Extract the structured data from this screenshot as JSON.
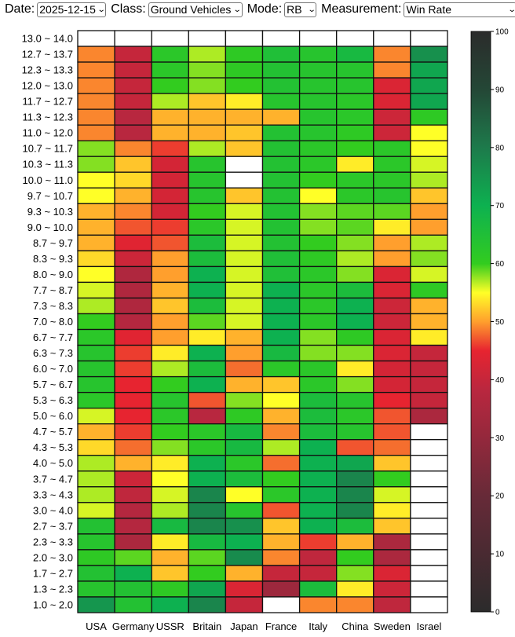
{
  "filters": {
    "date_label": "Date:",
    "date_value": "2025-12-15",
    "class_label": "Class:",
    "class_value": "Ground Vehicles",
    "mode_label": "Mode:",
    "mode_value": "RB",
    "measurement_label": "Measurement:",
    "measurement_value": "Win Rate"
  },
  "chart_data": {
    "type": "heatmap",
    "title": "",
    "xlabel": "",
    "ylabel": "",
    "x_categories": [
      "USA",
      "Germany",
      "USSR",
      "Britain",
      "Japan",
      "France",
      "Italy",
      "China",
      "Sweden",
      "Israel"
    ],
    "y_categories": [
      "13.0 ~ 14.0",
      "12.7 ~ 13.7",
      "12.3 ~ 13.3",
      "12.0 ~ 13.0",
      "11.7 ~ 12.7",
      "11.3 ~ 12.3",
      "11.0 ~ 12.0",
      "10.7 ~ 11.7",
      "10.3 ~ 11.3",
      "10.0 ~ 11.0",
      "9.7 ~ 10.7",
      "9.3 ~ 10.3",
      "9.0 ~ 10.0",
      "8.7 ~ 9.7",
      "8.3 ~ 9.3",
      "8.0 ~ 9.0",
      "7.7 ~ 8.7",
      "7.3 ~ 8.3",
      "7.0 ~ 8.0",
      "6.7 ~ 7.7",
      "6.3 ~ 7.3",
      "6.0 ~ 7.0",
      "5.7 ~ 6.7",
      "5.3 ~ 6.3",
      "5.0 ~ 6.0",
      "4.7 ~ 5.7",
      "4.3 ~ 5.3",
      "4.0 ~ 5.0",
      "3.7 ~ 4.7",
      "3.3 ~ 4.3",
      "3.0 ~ 4.0",
      "2.7 ~ 3.7",
      "2.3 ~ 3.3",
      "2.0 ~ 3.0",
      "1.7 ~ 2.7",
      "1.3 ~ 2.3",
      "1.0 ~ 2.0"
    ],
    "values": [
      [
        null,
        null,
        null,
        null,
        null,
        null,
        null,
        null,
        null,
        null
      ],
      [
        49,
        40,
        62,
        57,
        61,
        65,
        63,
        67,
        49,
        76
      ],
      [
        49,
        40,
        62,
        58,
        61,
        64,
        63,
        63,
        49,
        72
      ],
      [
        49,
        40,
        60,
        58,
        60,
        64,
        63,
        63,
        43,
        72
      ],
      [
        49,
        40,
        57,
        52,
        54,
        63,
        63,
        62,
        43,
        72
      ],
      [
        49,
        38,
        51,
        51,
        51,
        51,
        63,
        62,
        41,
        61
      ],
      [
        49,
        38,
        51,
        51,
        52,
        64,
        63,
        61,
        41,
        55
      ],
      [
        58,
        49,
        46,
        57,
        52,
        64,
        62,
        60,
        62,
        55
      ],
      [
        58,
        52,
        42,
        63,
        null,
        64,
        62,
        54,
        62,
        56
      ],
      [
        55,
        53,
        42,
        63,
        null,
        64,
        60,
        62,
        62,
        57
      ],
      [
        55,
        51,
        42,
        63,
        52,
        64,
        55,
        62,
        63,
        52
      ],
      [
        51,
        49,
        42,
        60,
        56,
        64,
        58,
        59,
        59,
        50
      ],
      [
        51,
        47,
        46,
        62,
        56,
        64,
        58,
        59,
        54,
        50
      ],
      [
        51,
        44,
        47,
        66,
        56,
        64,
        60,
        58,
        50,
        57
      ],
      [
        53,
        41,
        50,
        66,
        56,
        65,
        61,
        57,
        50,
        58
      ],
      [
        55,
        36,
        50,
        70,
        56,
        65,
        62,
        58,
        43,
        56
      ],
      [
        56,
        36,
        51,
        70,
        56,
        70,
        62,
        66,
        43,
        61
      ],
      [
        57,
        36,
        52,
        66,
        56,
        70,
        62,
        70,
        41,
        51
      ],
      [
        60,
        37,
        50,
        59,
        56,
        70,
        62,
        70,
        41,
        51
      ],
      [
        62,
        44,
        50,
        54,
        51,
        70,
        58,
        61,
        43,
        54
      ],
      [
        63,
        46,
        54,
        70,
        50,
        67,
        58,
        58,
        43,
        40
      ],
      [
        63,
        46,
        57,
        66,
        48,
        62,
        62,
        54,
        42,
        40
      ],
      [
        63,
        45,
        60,
        70,
        51,
        52,
        62,
        58,
        42,
        40
      ],
      [
        62,
        45,
        63,
        47,
        58,
        55,
        66,
        63,
        45,
        40
      ],
      [
        56,
        45,
        62,
        38,
        61,
        51,
        66,
        62,
        47,
        35
      ],
      [
        51,
        46,
        60,
        62,
        67,
        49,
        66,
        63,
        47,
        null
      ],
      [
        53,
        48,
        58,
        62,
        67,
        57,
        70,
        47,
        48,
        null
      ],
      [
        57,
        51,
        54,
        70,
        62,
        48,
        70,
        72,
        52,
        null
      ],
      [
        57,
        41,
        55,
        70,
        66,
        60,
        70,
        78,
        60,
        null
      ],
      [
        57,
        39,
        56,
        78,
        55,
        62,
        70,
        78,
        56,
        null
      ],
      [
        56,
        37,
        57,
        78,
        63,
        47,
        70,
        78,
        54,
        null
      ],
      [
        64,
        37,
        67,
        78,
        76,
        52,
        70,
        66,
        52,
        null
      ],
      [
        63,
        35,
        54,
        67,
        70,
        51,
        46,
        51,
        35,
        null
      ],
      [
        61,
        59,
        51,
        59,
        77,
        49,
        39,
        60,
        35,
        null
      ],
      [
        64,
        70,
        52,
        60,
        51,
        40,
        40,
        58,
        43,
        null
      ],
      [
        63,
        64,
        61,
        72,
        43,
        32,
        66,
        54,
        41,
        null
      ],
      [
        75,
        64,
        70,
        78,
        40,
        null,
        49,
        49,
        39,
        null
      ]
    ],
    "colorbar": {
      "min": 0,
      "max": 100,
      "ticks": [
        "0",
        "10",
        "20",
        "30",
        "40",
        "50",
        "60",
        "70",
        "80",
        "90",
        "100"
      ]
    }
  }
}
